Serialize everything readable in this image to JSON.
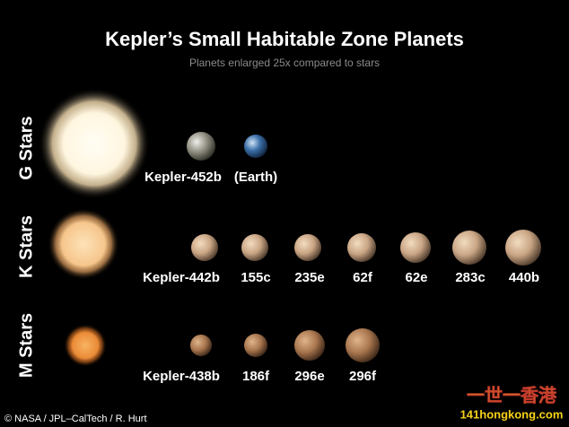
{
  "header": {
    "title": "Kepler’s Small Habitable Zone Planets",
    "subtitle": "Planets enlarged 25x compared to stars"
  },
  "rows": [
    {
      "label": "G Stars",
      "planets": [
        {
          "label": "Kepler-452b"
        },
        {
          "label": "(Earth)"
        }
      ]
    },
    {
      "label": "K Stars",
      "planets": [
        {
          "label": "Kepler-442b"
        },
        {
          "label": "155c"
        },
        {
          "label": "235e"
        },
        {
          "label": "62f"
        },
        {
          "label": "62e"
        },
        {
          "label": "283c"
        },
        {
          "label": "440b"
        }
      ]
    },
    {
      "label": "M Stars",
      "planets": [
        {
          "label": "Kepler-438b"
        },
        {
          "label": "186f"
        },
        {
          "label": "296e"
        },
        {
          "label": "296f"
        }
      ]
    }
  ],
  "credit": "© NASA / JPL–CalTech / R. Hurt",
  "watermark": {
    "name": "一世一香港",
    "url": "141hongkong.com"
  }
}
